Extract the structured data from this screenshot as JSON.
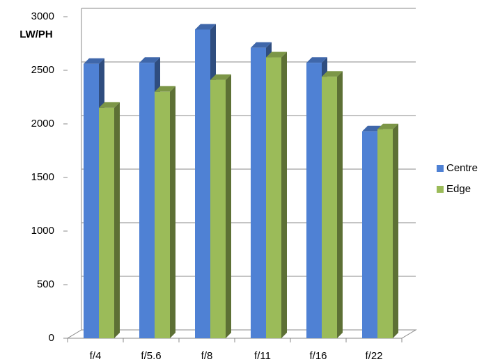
{
  "chart_data": {
    "type": "bar3d",
    "y_axis_label": "LW/PH",
    "categories": [
      "f/4",
      "f/5.6",
      "f/8",
      "f/11",
      "f/16",
      "f/22"
    ],
    "series": [
      {
        "name": "Centre",
        "color": "#4f81d4",
        "values": [
          2560,
          2570,
          2880,
          2710,
          2570,
          1930
        ]
      },
      {
        "name": "Edge",
        "color": "#9bbb59",
        "values": [
          2150,
          2300,
          2410,
          2620,
          2440,
          1950
        ]
      }
    ],
    "ylim": [
      0,
      3000
    ],
    "yticks": [
      0,
      500,
      1000,
      1500,
      2000,
      2500,
      3000
    ],
    "grid": true,
    "legend": "right"
  }
}
